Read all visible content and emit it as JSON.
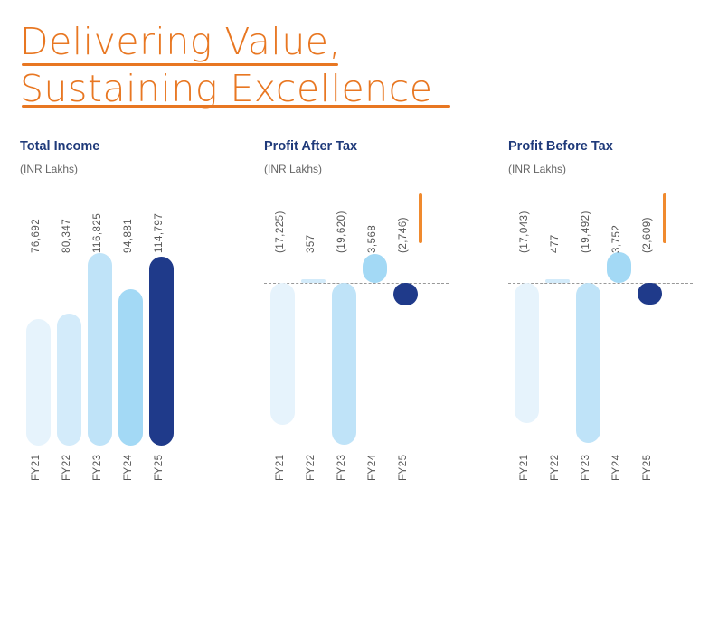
{
  "header": {
    "line1": "Delivering Value,",
    "line2": "Sustaining Excellence",
    "accent": "#e87722"
  },
  "chart_data": [
    {
      "type": "bar",
      "title": "Total Income",
      "unit": "(INR Lakhs)",
      "categories": [
        "FY21",
        "FY22",
        "FY23",
        "FY24",
        "FY25"
      ],
      "values": [
        76692,
        80347,
        116825,
        94881,
        114797
      ],
      "labels": [
        "76,692",
        "80,347",
        "116,825",
        "94,881",
        "114,797"
      ],
      "colors": [
        "#e6f3fc",
        "#d3ebfa",
        "#bfe3f8",
        "#a3d9f5",
        "#1f3a8a"
      ]
    },
    {
      "type": "bar",
      "title": "Profit After Tax",
      "unit": "(INR Lakhs)",
      "categories": [
        "FY21",
        "FY22",
        "FY23",
        "FY24",
        "FY25"
      ],
      "values": [
        -17225,
        357,
        -19620,
        3568,
        -2746
      ],
      "labels": [
        "(17,225)",
        "357",
        "(19,620)",
        "3,568",
        "(2,746)"
      ],
      "colors": [
        "#e6f3fc",
        "#d3ebfa",
        "#bfe3f8",
        "#a3d9f5",
        "#1f3a8a"
      ]
    },
    {
      "type": "bar",
      "title": "Profit Before Tax",
      "unit": "(INR Lakhs)",
      "categories": [
        "FY21",
        "FY22",
        "FY23",
        "FY24",
        "FY25"
      ],
      "values": [
        -17043,
        477,
        -19492,
        3752,
        -2609
      ],
      "labels": [
        "(17,043)",
        "477",
        "(19,492)",
        "3,752",
        "(2,609)"
      ],
      "colors": [
        "#e6f3fc",
        "#d3ebfa",
        "#bfe3f8",
        "#a3d9f5",
        "#1f3a8a"
      ]
    }
  ]
}
